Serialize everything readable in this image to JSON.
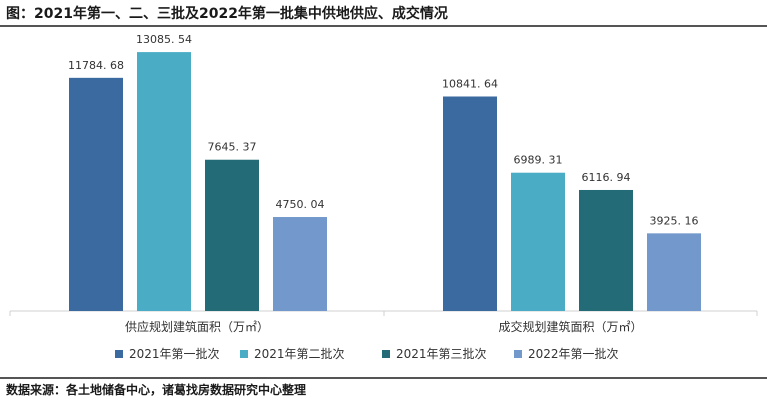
{
  "title": "图：2021年第一、二、三批及2022年第一批集中供地供应、成交情况",
  "source": "数据来源：各土地储备中心，诸葛找房数据研究中心整理",
  "chart_data": {
    "type": "bar",
    "categories": [
      "供应规划建筑面积（万㎡）",
      "成交规划建筑面积（万㎡）"
    ],
    "series": [
      {
        "name": "2021年第一批次",
        "color": "#3b6aa0",
        "values": [
          11784.68,
          10841.64
        ],
        "labels": [
          "11784. 68",
          "10841. 64"
        ]
      },
      {
        "name": "2021年第二批次",
        "color": "#4bacc6",
        "values": [
          13085.54,
          6989.31
        ],
        "labels": [
          "13085. 54",
          "6989. 31"
        ]
      },
      {
        "name": "2021年第三批次",
        "color": "#246b78",
        "values": [
          7645.37,
          6116.94
        ],
        "labels": [
          "7645. 37",
          "6116. 94"
        ]
      },
      {
        "name": "2022年第一批次",
        "color": "#7399cc",
        "values": [
          4750.04,
          3925.16
        ],
        "labels": [
          "4750. 04",
          "3925. 16"
        ]
      }
    ],
    "ylim": [
      0,
      14000
    ],
    "grid": false,
    "legend": "bottom"
  }
}
